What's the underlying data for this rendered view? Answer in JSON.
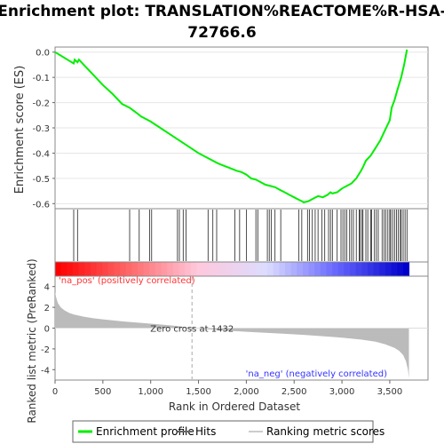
{
  "chart_data": {
    "type": "line",
    "title_line1": "Enrichment plot: TRANSLATION%REACTOME%R-HSA-",
    "title_line2": "72766.6",
    "top_panel": {
      "ylabel": "Enrichment score (ES)",
      "ylim": [
        -0.62,
        0.02
      ],
      "y_ticks": [
        "0.0",
        "-0.1",
        "-0.2",
        "-0.3",
        "-0.4",
        "-0.5",
        "-0.6"
      ],
      "y_tick_values": [
        0.0,
        -0.1,
        -0.2,
        -0.3,
        -0.4,
        -0.5,
        -0.6
      ],
      "series": [
        {
          "name": "Enrichment profile",
          "color": "#00ee00",
          "x": [
            0,
            195,
            205,
            235,
            250,
            300,
            400,
            500,
            600,
            700,
            780,
            850,
            900,
            950,
            1000,
            1100,
            1200,
            1300,
            1400,
            1500,
            1600,
            1700,
            1800,
            1900,
            1950,
            2000,
            2050,
            2100,
            2150,
            2200,
            2250,
            2300,
            2350,
            2400,
            2450,
            2500,
            2550,
            2580,
            2600,
            2650,
            2700,
            2750,
            2800,
            2850,
            2880,
            2900,
            2950,
            3000,
            3050,
            3100,
            3150,
            3200,
            3220,
            3250,
            3300,
            3350,
            3400,
            3450,
            3500,
            3520,
            3550,
            3580,
            3620,
            3650,
            3680
          ],
          "y": [
            0.0,
            -0.045,
            -0.03,
            -0.04,
            -0.03,
            -0.05,
            -0.09,
            -0.13,
            -0.165,
            -0.205,
            -0.22,
            -0.24,
            -0.255,
            -0.265,
            -0.275,
            -0.3,
            -0.325,
            -0.35,
            -0.375,
            -0.4,
            -0.42,
            -0.44,
            -0.455,
            -0.47,
            -0.475,
            -0.485,
            -0.5,
            -0.505,
            -0.515,
            -0.525,
            -0.53,
            -0.535,
            -0.545,
            -0.555,
            -0.565,
            -0.575,
            -0.585,
            -0.59,
            -0.595,
            -0.59,
            -0.58,
            -0.57,
            -0.575,
            -0.565,
            -0.555,
            -0.56,
            -0.555,
            -0.54,
            -0.53,
            -0.52,
            -0.5,
            -0.47,
            -0.455,
            -0.43,
            -0.41,
            -0.38,
            -0.35,
            -0.31,
            -0.27,
            -0.22,
            -0.19,
            -0.15,
            -0.1,
            -0.05,
            0.01
          ]
        }
      ]
    },
    "hits": {
      "name": "Hits",
      "positions": [
        195,
        235,
        780,
        880,
        990,
        1010,
        1280,
        1300,
        1340,
        1370,
        1600,
        1650,
        1690,
        1880,
        1930,
        2000,
        2100,
        2120,
        2220,
        2240,
        2260,
        2300,
        2360,
        2550,
        2580,
        2640,
        2660,
        2690,
        2720,
        2750,
        2790,
        2820,
        2860,
        2880,
        2900,
        2950,
        2990,
        3010,
        3030,
        3050,
        3080,
        3100,
        3120,
        3150,
        3180,
        3190,
        3210,
        3220,
        3250,
        3270,
        3300,
        3310,
        3340,
        3360,
        3380,
        3420,
        3440,
        3460,
        3480,
        3500,
        3510,
        3530,
        3550,
        3570,
        3590,
        3610,
        3620,
        3640,
        3660,
        3680
      ]
    },
    "rank_bar": {
      "n": 3700,
      "gradient": [
        "#ff0000",
        "#ff6666",
        "#ffc8dc",
        "#dcdcff",
        "#6666ff",
        "#0000cc"
      ],
      "pos_label": "'na_pos' (positively correlated)",
      "neg_label": "'na_neg' (negatively correlated)",
      "pos_color": "#ff3333",
      "neg_color": "#3333ff"
    },
    "bottom_panel": {
      "ylabel": "Ranked list metric (PreRanked)",
      "ylim": [
        -5,
        5
      ],
      "y_ticks": [
        "4",
        "2",
        "0",
        "-2",
        "-4"
      ],
      "y_tick_values": [
        4,
        2,
        0,
        -2,
        -4
      ],
      "metric_x": [
        0,
        10,
        30,
        60,
        100,
        150,
        200,
        300,
        400,
        500,
        700,
        900,
        1100,
        1300,
        1432,
        1600,
        1800,
        2000,
        2200,
        2400,
        2600,
        2800,
        3000,
        3200,
        3350,
        3450,
        3550,
        3600,
        3640,
        3670,
        3690,
        3700
      ],
      "metric_y": [
        3.5,
        3.0,
        2.4,
        2.0,
        1.7,
        1.45,
        1.3,
        1.1,
        0.95,
        0.85,
        0.65,
        0.5,
        0.35,
        0.18,
        0.0,
        -0.12,
        -0.25,
        -0.35,
        -0.45,
        -0.55,
        -0.65,
        -0.78,
        -0.92,
        -1.1,
        -1.3,
        -1.55,
        -1.9,
        -2.2,
        -2.6,
        -3.2,
        -4.0,
        -4.8
      ],
      "metric_color": "#bbbbbb",
      "zero_cross": 1432,
      "zero_cross_label": "Zero cross at 1432"
    },
    "xlabel": "Rank in Ordered Dataset",
    "x_ticks": [
      "0",
      "500",
      "1,000",
      "1,500",
      "2,000",
      "2,500",
      "3,000",
      "3,500"
    ],
    "x_tick_values": [
      0,
      500,
      1000,
      1500,
      2000,
      2500,
      3000,
      3500
    ],
    "xlim": [
      0,
      3900
    ],
    "legend": [
      {
        "label": "Enrichment profile",
        "color": "#00ee00"
      },
      {
        "label": "Hits",
        "color": "#666666"
      },
      {
        "label": "Ranking metric scores",
        "color": "#cccccc"
      }
    ]
  }
}
